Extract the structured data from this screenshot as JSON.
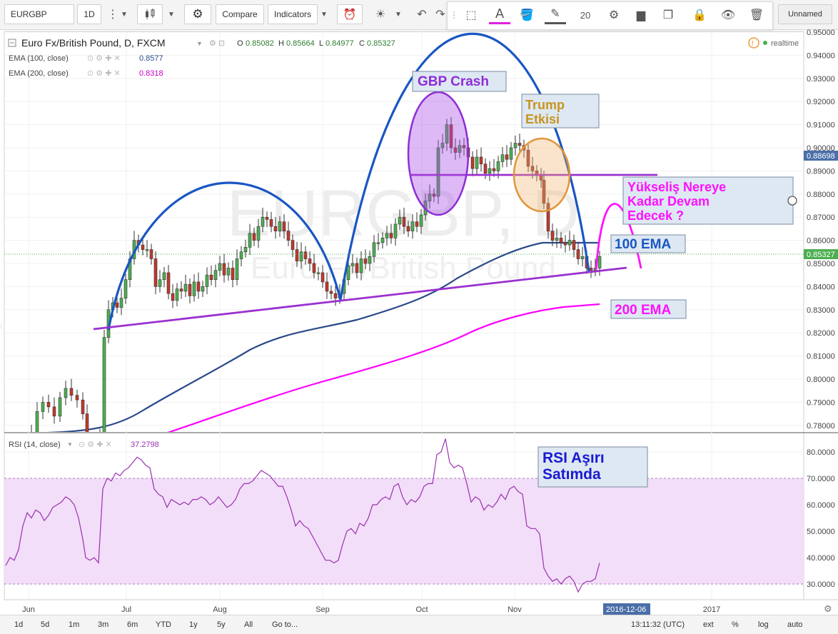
{
  "toolbar": {
    "symbol": "EURGBP",
    "interval": "1D",
    "compare": "Compare",
    "indicators": "Indicators",
    "font_size": "20",
    "layout_name": "Unnamed"
  },
  "legend": {
    "title": "Euro Fx/British Pound, D, FXCM",
    "open_label": "O",
    "open": "0.85082",
    "high_label": "H",
    "high": "0.85664",
    "low_label": "L",
    "low": "0.84977",
    "close_label": "C",
    "close": "0.85327",
    "ema100_label": "EMA (100, close)",
    "ema100_value": "0.8577",
    "ema200_label": "EMA (200, close)",
    "ema200_value": "0.8318",
    "realtime": "realtime"
  },
  "watermark": {
    "symbol": "EURGBP, D",
    "name": "Euro Fx/British Pound"
  },
  "annotations": {
    "gbp_crash": "GBP Crash",
    "trump_line1": "Trump",
    "trump_line2": "Etkisi",
    "question_line1": "Yükseliş Nereye",
    "question_line2": "Kadar Devam",
    "question_line3": "Edecek ?",
    "ema100": "100 EMA",
    "ema200": "200 EMA",
    "rsi_line1": "RSI Aşırı",
    "rsi_line2": "Satımda"
  },
  "price_axis": {
    "ticks": [
      "0.95000",
      "0.94000",
      "0.93000",
      "0.92000",
      "0.91000",
      "0.90000",
      "0.89000",
      "0.88000",
      "0.87000",
      "0.86000",
      "0.85000",
      "0.84000",
      "0.83000",
      "0.82000",
      "0.81000",
      "0.80000",
      "0.79000",
      "0.78000"
    ],
    "marker_hline": "0.88698",
    "marker_last": "0.85327"
  },
  "rsi": {
    "legend": "RSI (14, close)",
    "value": "37.2798",
    "ticks": [
      "80.0000",
      "70.0000",
      "60.0000",
      "50.0000",
      "40.0000",
      "30.0000"
    ]
  },
  "time_axis": {
    "labels": [
      "Jun",
      "Jul",
      "Aug",
      "Sep",
      "Oct",
      "Nov",
      "2017"
    ],
    "cursor_date": "2016-12-06"
  },
  "bottombar": {
    "ranges": [
      "1d",
      "5d",
      "1m",
      "3m",
      "6m",
      "YTD",
      "1y",
      "5y",
      "All",
      "Go to..."
    ],
    "time": "13:11:32 (UTC)",
    "ext": "ext",
    "percent": "%",
    "log": "log",
    "auto": "auto"
  },
  "colors": {
    "up": "#4caf50",
    "down": "#c0392b",
    "ema100": "#2b4a8a",
    "ema200": "#ff00ff",
    "rsi": "#9b30b0",
    "rsi_band": "#f1ddf7",
    "arc": "#1a56c4"
  },
  "chart_data": {
    "type": "candlestick",
    "price_range": [
      0.775,
      0.952
    ],
    "ema100": {
      "name": "EMA (100, close)",
      "last": 0.8577
    },
    "ema200": {
      "name": "EMA (200, close)",
      "last": 0.8318
    },
    "rsi": {
      "name": "RSI (14, close)",
      "range": [
        25,
        85
      ],
      "band": [
        30,
        70
      ],
      "last": 37.2798
    },
    "hline": 0.88698,
    "last_close": 0.85327
  }
}
